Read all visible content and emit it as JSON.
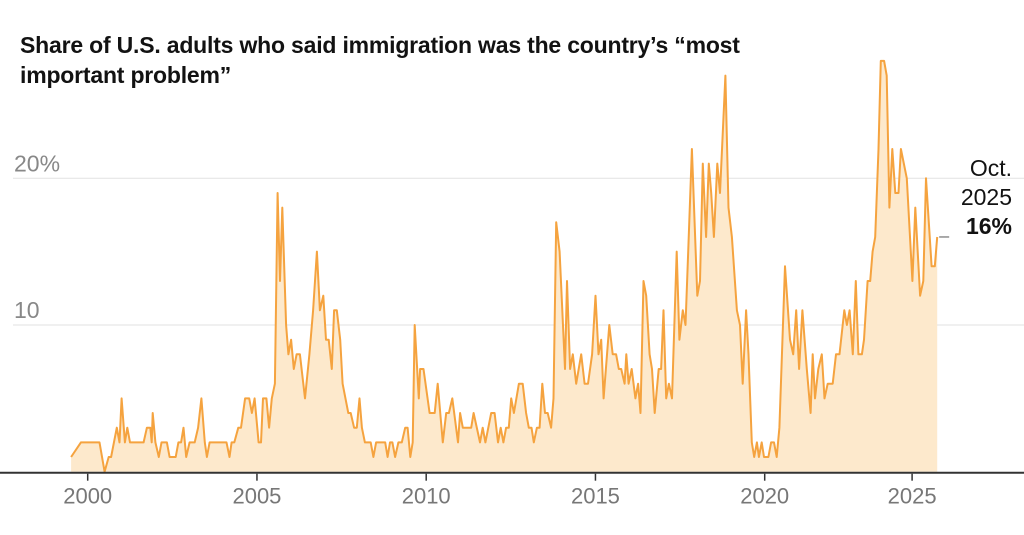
{
  "chart_data": {
    "type": "area",
    "title": "Share of U.S. adults who said immigration was the country’s “most important problem”",
    "xlabel": "",
    "ylabel": "",
    "ylim": [
      0,
      28
    ],
    "xlim": [
      1999.5,
      2028.5
    ],
    "grid": true,
    "x_ticks": [
      {
        "value": 2000,
        "label": "2000"
      },
      {
        "value": 2005,
        "label": "2005"
      },
      {
        "value": 2010,
        "label": "2010"
      },
      {
        "value": 2015,
        "label": "2015"
      },
      {
        "value": 2020,
        "label": "2020"
      },
      {
        "value": 2025,
        "label": "2025"
      }
    ],
    "y_ticks": [
      {
        "value": 10,
        "label": "10"
      },
      {
        "value": 20,
        "label": "20%"
      }
    ],
    "colors": {
      "line": "#f5a33f",
      "fill": "#fde9cc",
      "grid": "#e6e6e6",
      "axis": "#333333"
    },
    "annotation": {
      "line1": "Oct.",
      "line2": "2025",
      "value": "16%"
    },
    "points": [
      [
        1999.51,
        1
      ],
      [
        1999.8,
        2
      ],
      [
        2000.35,
        2
      ],
      [
        2000.5,
        0
      ],
      [
        2000.62,
        1
      ],
      [
        2000.69,
        1
      ],
      [
        2000.86,
        3
      ],
      [
        2000.94,
        2
      ],
      [
        2001.0,
        5
      ],
      [
        2001.1,
        2
      ],
      [
        2001.17,
        3
      ],
      [
        2001.25,
        2
      ],
      [
        2001.65,
        2
      ],
      [
        2001.75,
        3
      ],
      [
        2001.85,
        3
      ],
      [
        2001.89,
        2
      ],
      [
        2001.92,
        4
      ],
      [
        2002.0,
        2
      ],
      [
        2002.1,
        1
      ],
      [
        2002.18,
        2
      ],
      [
        2002.34,
        2
      ],
      [
        2002.42,
        1
      ],
      [
        2002.6,
        1
      ],
      [
        2002.68,
        2
      ],
      [
        2002.76,
        2
      ],
      [
        2002.83,
        3
      ],
      [
        2002.91,
        1
      ],
      [
        2003.01,
        2
      ],
      [
        2003.16,
        2
      ],
      [
        2003.26,
        3
      ],
      [
        2003.36,
        5
      ],
      [
        2003.46,
        2
      ],
      [
        2003.52,
        1
      ],
      [
        2003.6,
        2
      ],
      [
        2004.1,
        2
      ],
      [
        2004.19,
        1
      ],
      [
        2004.25,
        2
      ],
      [
        2004.33,
        2
      ],
      [
        2004.45,
        3
      ],
      [
        2004.53,
        3
      ],
      [
        2004.65,
        5
      ],
      [
        2004.77,
        5
      ],
      [
        2004.85,
        4
      ],
      [
        2004.93,
        5
      ],
      [
        2005.05,
        2
      ],
      [
        2005.12,
        2
      ],
      [
        2005.18,
        5
      ],
      [
        2005.28,
        5
      ],
      [
        2005.36,
        3
      ],
      [
        2005.44,
        5
      ],
      [
        2005.53,
        6
      ],
      [
        2005.61,
        19
      ],
      [
        2005.68,
        13
      ],
      [
        2005.75,
        18
      ],
      [
        2005.86,
        10
      ],
      [
        2005.93,
        8
      ],
      [
        2006.01,
        9
      ],
      [
        2006.09,
        7
      ],
      [
        2006.17,
        8
      ],
      [
        2006.27,
        8
      ],
      [
        2006.42,
        5
      ],
      [
        2006.55,
        8
      ],
      [
        2006.66,
        11
      ],
      [
        2006.77,
        15
      ],
      [
        2006.86,
        11
      ],
      [
        2006.96,
        12
      ],
      [
        2007.04,
        9
      ],
      [
        2007.12,
        9
      ],
      [
        2007.21,
        7
      ],
      [
        2007.28,
        11
      ],
      [
        2007.36,
        11
      ],
      [
        2007.46,
        9
      ],
      [
        2007.53,
        6
      ],
      [
        2007.7,
        4
      ],
      [
        2007.77,
        4
      ],
      [
        2007.87,
        3
      ],
      [
        2007.95,
        3
      ],
      [
        2008.03,
        5
      ],
      [
        2008.1,
        3
      ],
      [
        2008.19,
        2
      ],
      [
        2008.36,
        2
      ],
      [
        2008.44,
        1
      ],
      [
        2008.52,
        2
      ],
      [
        2008.79,
        2
      ],
      [
        2008.86,
        1
      ],
      [
        2008.93,
        2
      ],
      [
        2009.0,
        2
      ],
      [
        2009.08,
        1
      ],
      [
        2009.18,
        2
      ],
      [
        2009.28,
        2
      ],
      [
        2009.38,
        3
      ],
      [
        2009.45,
        3
      ],
      [
        2009.53,
        1
      ],
      [
        2009.6,
        2
      ],
      [
        2009.66,
        10
      ],
      [
        2009.78,
        5
      ],
      [
        2009.82,
        7
      ],
      [
        2009.92,
        7
      ],
      [
        2010.1,
        4
      ],
      [
        2010.25,
        4
      ],
      [
        2010.34,
        6
      ],
      [
        2010.49,
        2
      ],
      [
        2010.59,
        4
      ],
      [
        2010.67,
        4
      ],
      [
        2010.77,
        5
      ],
      [
        2010.94,
        2
      ],
      [
        2011.0,
        4
      ],
      [
        2011.08,
        3
      ],
      [
        2011.33,
        3
      ],
      [
        2011.4,
        4
      ],
      [
        2011.59,
        2
      ],
      [
        2011.67,
        3
      ],
      [
        2011.75,
        2
      ],
      [
        2011.92,
        4
      ],
      [
        2012.02,
        4
      ],
      [
        2012.12,
        2
      ],
      [
        2012.2,
        3
      ],
      [
        2012.28,
        2
      ],
      [
        2012.36,
        3
      ],
      [
        2012.44,
        3
      ],
      [
        2012.51,
        5
      ],
      [
        2012.59,
        4
      ],
      [
        2012.74,
        6
      ],
      [
        2012.85,
        6
      ],
      [
        2012.95,
        4
      ],
      [
        2013.03,
        3
      ],
      [
        2013.11,
        3
      ],
      [
        2013.18,
        2
      ],
      [
        2013.27,
        3
      ],
      [
        2013.35,
        3
      ],
      [
        2013.43,
        6
      ],
      [
        2013.51,
        4
      ],
      [
        2013.59,
        4
      ],
      [
        2013.69,
        3
      ],
      [
        2013.76,
        5
      ],
      [
        2013.84,
        17
      ],
      [
        2013.94,
        15
      ],
      [
        2014.1,
        7
      ],
      [
        2014.16,
        13
      ],
      [
        2014.25,
        7
      ],
      [
        2014.33,
        8
      ],
      [
        2014.43,
        6
      ],
      [
        2014.58,
        8
      ],
      [
        2014.68,
        6
      ],
      [
        2014.78,
        6
      ],
      [
        2014.9,
        8
      ],
      [
        2015.0,
        12
      ],
      [
        2015.09,
        8
      ],
      [
        2015.17,
        9
      ],
      [
        2015.24,
        5
      ],
      [
        2015.41,
        10
      ],
      [
        2015.51,
        8
      ],
      [
        2015.61,
        8
      ],
      [
        2015.69,
        7
      ],
      [
        2015.76,
        7
      ],
      [
        2015.86,
        6
      ],
      [
        2015.91,
        8
      ],
      [
        2015.98,
        6
      ],
      [
        2016.07,
        7
      ],
      [
        2016.18,
        5
      ],
      [
        2016.26,
        6
      ],
      [
        2016.33,
        4
      ],
      [
        2016.42,
        13
      ],
      [
        2016.5,
        12
      ],
      [
        2016.6,
        8
      ],
      [
        2016.67,
        7
      ],
      [
        2016.75,
        4
      ],
      [
        2016.87,
        7
      ],
      [
        2016.94,
        7
      ],
      [
        2017.01,
        11
      ],
      [
        2017.09,
        5
      ],
      [
        2017.17,
        6
      ],
      [
        2017.26,
        5
      ],
      [
        2017.4,
        15
      ],
      [
        2017.48,
        9
      ],
      [
        2017.58,
        11
      ],
      [
        2017.66,
        10
      ],
      [
        2017.74,
        15
      ],
      [
        2017.85,
        22
      ],
      [
        2018.01,
        12
      ],
      [
        2018.09,
        13
      ],
      [
        2018.17,
        21
      ],
      [
        2018.27,
        16
      ],
      [
        2018.35,
        21
      ],
      [
        2018.42,
        19
      ],
      [
        2018.5,
        16
      ],
      [
        2018.6,
        21
      ],
      [
        2018.68,
        19
      ],
      [
        2018.84,
        27
      ],
      [
        2018.93,
        18
      ],
      [
        2019.03,
        16
      ],
      [
        2019.18,
        11
      ],
      [
        2019.27,
        10
      ],
      [
        2019.35,
        6
      ],
      [
        2019.45,
        11
      ],
      [
        2019.52,
        8
      ],
      [
        2019.62,
        2
      ],
      [
        2019.69,
        1
      ],
      [
        2019.77,
        2
      ],
      [
        2019.83,
        1
      ],
      [
        2019.91,
        2
      ],
      [
        2019.98,
        1
      ],
      [
        2020.13,
        1
      ],
      [
        2020.22,
        2
      ],
      [
        2020.32,
        2
      ],
      [
        2020.41,
        1
      ],
      [
        2020.5,
        3
      ],
      [
        2020.69,
        14
      ],
      [
        2020.86,
        9
      ],
      [
        2020.97,
        8
      ],
      [
        2021.07,
        11
      ],
      [
        2021.17,
        7
      ],
      [
        2021.28,
        11
      ],
      [
        2021.43,
        7
      ],
      [
        2021.56,
        4
      ],
      [
        2021.63,
        8
      ],
      [
        2021.71,
        5
      ],
      [
        2021.82,
        7
      ],
      [
        2021.94,
        8
      ],
      [
        2022.03,
        5
      ],
      [
        2022.14,
        6
      ],
      [
        2022.31,
        6
      ],
      [
        2022.42,
        8
      ],
      [
        2022.54,
        8
      ],
      [
        2022.7,
        11
      ],
      [
        2022.79,
        10
      ],
      [
        2022.88,
        11
      ],
      [
        2022.99,
        8
      ],
      [
        2023.09,
        13
      ],
      [
        2023.18,
        8
      ],
      [
        2023.3,
        8
      ],
      [
        2023.37,
        9
      ],
      [
        2023.49,
        13
      ],
      [
        2023.58,
        13
      ],
      [
        2023.66,
        15
      ],
      [
        2023.75,
        16
      ],
      [
        2023.86,
        22
      ],
      [
        2023.94,
        28
      ],
      [
        2024.05,
        28
      ],
      [
        2024.14,
        27
      ],
      [
        2024.23,
        18
      ],
      [
        2024.33,
        22
      ],
      [
        2024.43,
        19
      ],
      [
        2024.54,
        19
      ],
      [
        2024.62,
        22
      ],
      [
        2024.82,
        20
      ],
      [
        2025.01,
        13
      ],
      [
        2025.11,
        18
      ],
      [
        2025.27,
        12
      ],
      [
        2025.38,
        13
      ],
      [
        2025.47,
        20
      ],
      [
        2025.66,
        14
      ],
      [
        2025.77,
        14
      ],
      [
        2025.85,
        16
      ]
    ]
  }
}
